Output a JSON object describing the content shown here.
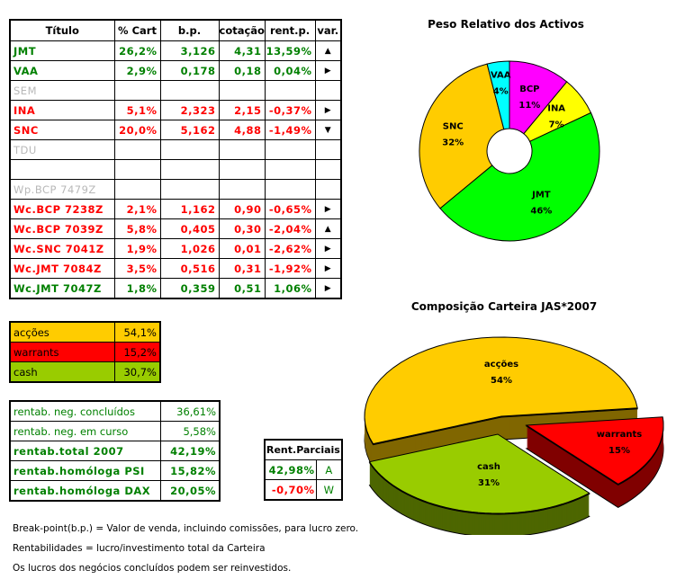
{
  "main_table": {
    "headers": [
      "Título",
      "% Cart",
      "b.p.",
      "cotação",
      "rent.p.",
      "var."
    ],
    "rows": [
      {
        "titulo": "JMT",
        "cart": "26,2%",
        "bp": "3,126",
        "cotacao": "4,31",
        "rent": "13,59%",
        "var": "▲",
        "var_icon": "triangle-up",
        "color": "green"
      },
      {
        "titulo": "VAA",
        "cart": "2,9%",
        "bp": "0,178",
        "cotacao": "0,18",
        "rent": "0,04%",
        "var": "▶",
        "var_icon": "triangle-right",
        "color": "green"
      },
      {
        "titulo": "SEM",
        "cart": "",
        "bp": "",
        "cotacao": "",
        "rent": "",
        "var": "",
        "color": "gray"
      },
      {
        "titulo": "INA",
        "cart": "5,1%",
        "bp": "2,323",
        "cotacao": "2,15",
        "rent": "-0,37%",
        "var": "▶",
        "var_icon": "triangle-right",
        "color": "red"
      },
      {
        "titulo": "SNC",
        "cart": "20,0%",
        "bp": "5,162",
        "cotacao": "4,88",
        "rent": "-1,49%",
        "var": "▼",
        "var_icon": "triangle-down",
        "color": "red"
      },
      {
        "titulo": "TDU",
        "cart": "",
        "bp": "",
        "cotacao": "",
        "rent": "",
        "var": "",
        "color": "gray"
      },
      {
        "titulo": "",
        "cart": "",
        "bp": "",
        "cotacao": "",
        "rent": "",
        "var": "",
        "color": "gray"
      },
      {
        "titulo": "Wp.BCP 7479Z",
        "cart": "",
        "bp": "",
        "cotacao": "",
        "rent": "",
        "var": "",
        "color": "gray"
      },
      {
        "titulo": "Wc.BCP 7238Z",
        "cart": "2,1%",
        "bp": "1,162",
        "cotacao": "0,90",
        "rent": "-0,65%",
        "var": "▶",
        "var_icon": "triangle-right",
        "color": "red"
      },
      {
        "titulo": "Wc.BCP 7039Z",
        "cart": "5,8%",
        "bp": "0,405",
        "cotacao": "0,30",
        "rent": "-2,04%",
        "var": "▲",
        "var_icon": "triangle-up",
        "color": "red"
      },
      {
        "titulo": "Wc.SNC 7041Z",
        "cart": "1,9%",
        "bp": "1,026",
        "cotacao": "0,01",
        "rent": "-2,62%",
        "var": "▶",
        "var_icon": "triangle-right",
        "color": "red"
      },
      {
        "titulo": "Wc.JMT 7084Z",
        "cart": "3,5%",
        "bp": "0,516",
        "cotacao": "0,31",
        "rent": "-1,92%",
        "var": "▶",
        "var_icon": "triangle-right",
        "color": "red"
      },
      {
        "titulo": "Wc.JMT 7047Z",
        "cart": "1,8%",
        "bp": "0,359",
        "cotacao": "0,51",
        "rent": "1,06%",
        "var": "▶",
        "var_icon": "triangle-right",
        "color": "green"
      }
    ]
  },
  "allocation": [
    {
      "label": "acções",
      "value": "54,1%",
      "color": "#ffcc00"
    },
    {
      "label": "warrants",
      "value": "15,2%",
      "color": "#ff0000"
    },
    {
      "label": "cash",
      "value": "30,7%",
      "color": "#99cc00"
    }
  ],
  "rentab": [
    {
      "label": "rentab. neg. concluídos",
      "value": "36,61%",
      "bold": false
    },
    {
      "label": "rentab. neg. em curso",
      "value": "5,58%",
      "bold": false
    },
    {
      "label": "rentab.total 2007",
      "value": "42,19%",
      "bold": true
    },
    {
      "label": "rentab.homóloga PSI",
      "value": "15,82%",
      "bold": true
    },
    {
      "label": "rentab.homóloga DAX",
      "value": "20,05%",
      "bold": true
    }
  ],
  "rent_parciais": {
    "title": "Rent.Parciais",
    "rows": [
      {
        "value": "42,98%",
        "code": "A",
        "color": "green"
      },
      {
        "value": "-0,70%",
        "code": "W",
        "color": "red"
      }
    ]
  },
  "notes": [
    "Break-point(b.p.) = Valor de venda, incluindo comissões, para lucro zero.",
    "Rentabilidades = lucro/investimento total da Carteira",
    "Os lucros dos negócios concluídos podem ser reinvestidos."
  ],
  "chart_data": [
    {
      "type": "pie",
      "variant": "doughnut",
      "title": "Peso Relativo dos Activos",
      "categories": [
        "BCP",
        "INA",
        "JMT",
        "SNC",
        "VAA"
      ],
      "values": [
        11,
        7,
        46,
        32,
        4
      ],
      "labels": [
        "11%",
        "7%",
        "46%",
        "32%",
        "4%"
      ],
      "colors": [
        "#ff00ff",
        "#ffff00",
        "#00ff00",
        "#ffcc00",
        "#00ffff"
      ],
      "legend": "none"
    },
    {
      "type": "pie",
      "variant": "3d-exploded",
      "title": "Composição Carteira JAS*2007",
      "categories": [
        "acções",
        "warrants",
        "cash"
      ],
      "values": [
        54,
        15,
        31
      ],
      "labels": [
        "54%",
        "15%",
        "31%"
      ],
      "colors": [
        "#ffcc00",
        "#ff0000",
        "#99cc00"
      ],
      "side_colors": [
        "#806600",
        "#800000",
        "#4d6600"
      ],
      "legend": "none"
    }
  ]
}
